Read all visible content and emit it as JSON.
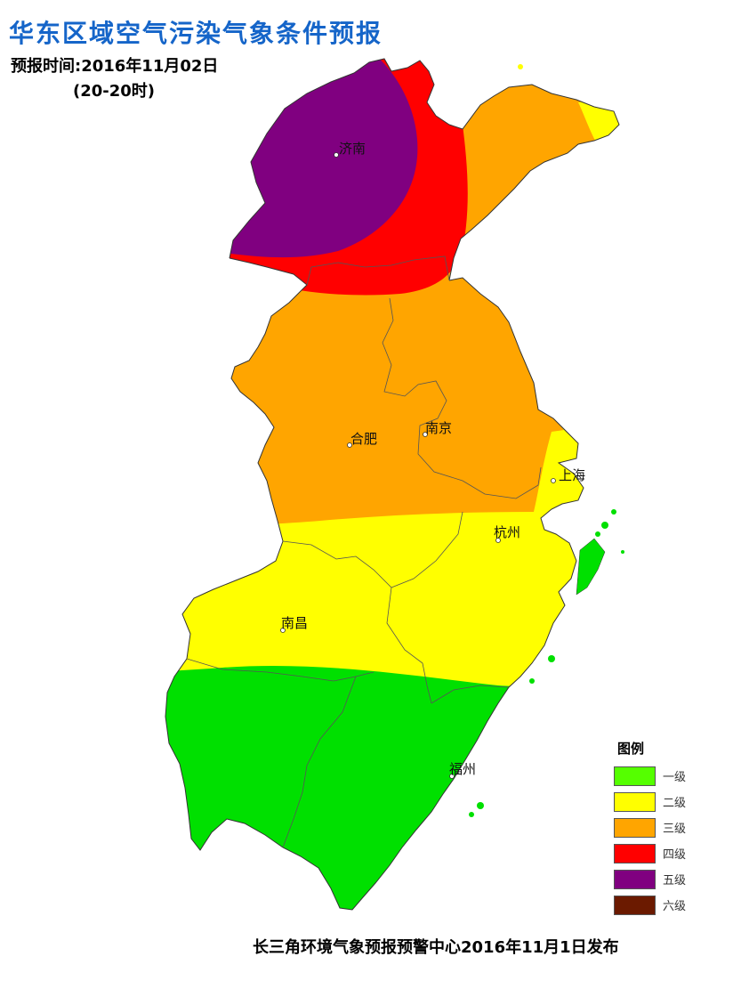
{
  "header": {
    "title": "华东区域空气污染气象条件预报",
    "forecast_time": "预报时间:2016年11月02日",
    "time_range": "(20-20时)"
  },
  "cities": {
    "jinan": "济南",
    "hefei": "合肥",
    "nanjing": "南京",
    "shanghai": "上海",
    "hangzhou": "杭州",
    "nanchang": "南昌",
    "fuzhou": "福州"
  },
  "legend": {
    "title": "图例",
    "items": [
      {
        "label": "一级",
        "color": "#55ff00"
      },
      {
        "label": "二级",
        "color": "#ffff00"
      },
      {
        "label": "三级",
        "color": "#ffa500"
      },
      {
        "label": "四级",
        "color": "#ff0000"
      },
      {
        "label": "五级",
        "color": "#800080"
      },
      {
        "label": "六级",
        "color": "#6b1a00"
      }
    ]
  },
  "footer": {
    "publisher": "长三角环境气象预报预警中心2016年11月1日发布"
  },
  "zone_colors": {
    "level1_map": "#00e000",
    "level2": "#ffff00",
    "level3": "#ffa500",
    "level4": "#ff0000",
    "level5": "#800080"
  }
}
